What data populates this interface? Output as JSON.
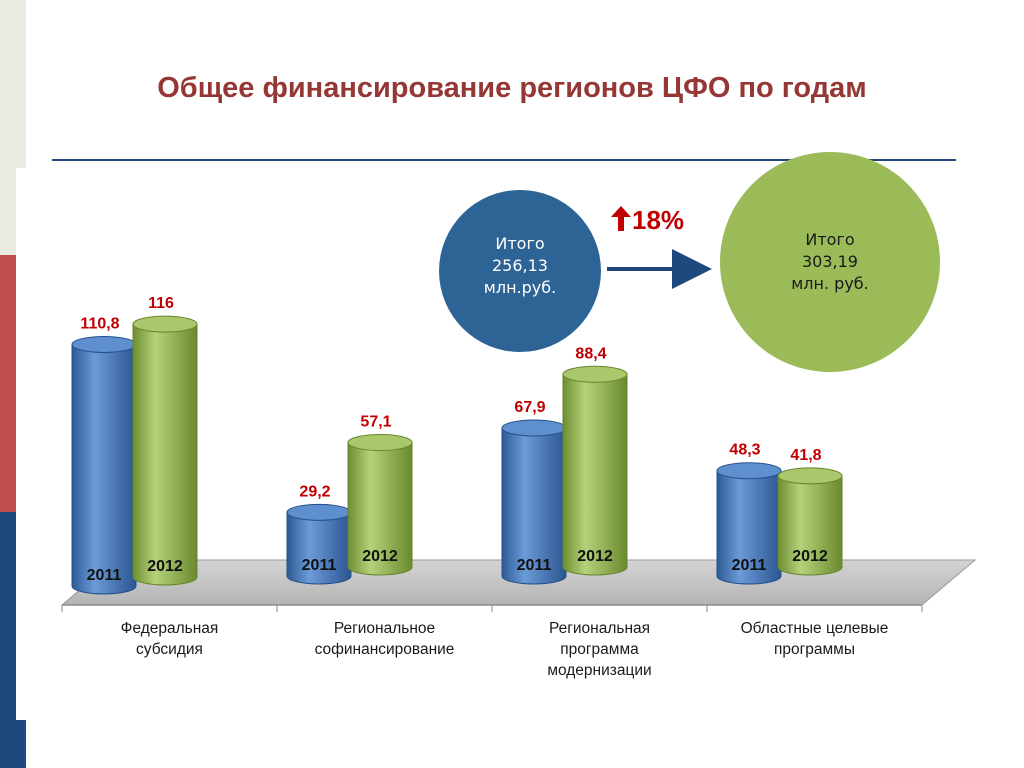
{
  "title": "Общее финансирование регионов ЦФО по годам",
  "summary": {
    "left_circle": {
      "line1": "Итого",
      "line2": "256,13",
      "line3": "млн.руб.",
      "color": "#2e6396"
    },
    "right_circle": {
      "line1": "Итого",
      "line2": "303,19",
      "line3": "млн. руб.",
      "color": "#9bbb59"
    },
    "growth": "18%",
    "growth_icon": "arrow-up-icon"
  },
  "chart_data": {
    "type": "bar",
    "categories": [
      [
        "Федеральная",
        "субсидия"
      ],
      [
        "Региональное",
        "софинансирование"
      ],
      [
        "Региональная",
        "программа",
        "модернизации"
      ],
      [
        "Областные целевые",
        "программы"
      ]
    ],
    "series": [
      {
        "name": "2011",
        "values": [
          110.8,
          29.2,
          67.9,
          48.3
        ],
        "labels": [
          "110,8",
          "29,2",
          "67,9",
          "48,3"
        ],
        "color": "#4f81bd"
      },
      {
        "name": "2012",
        "values": [
          116,
          57.1,
          88.4,
          41.8
        ],
        "labels": [
          "116",
          "57,1",
          "88,4",
          "41,8"
        ],
        "color": "#9bbb59"
      }
    ],
    "value_label_color": "#c00000",
    "ylim": [
      0,
      130
    ]
  }
}
